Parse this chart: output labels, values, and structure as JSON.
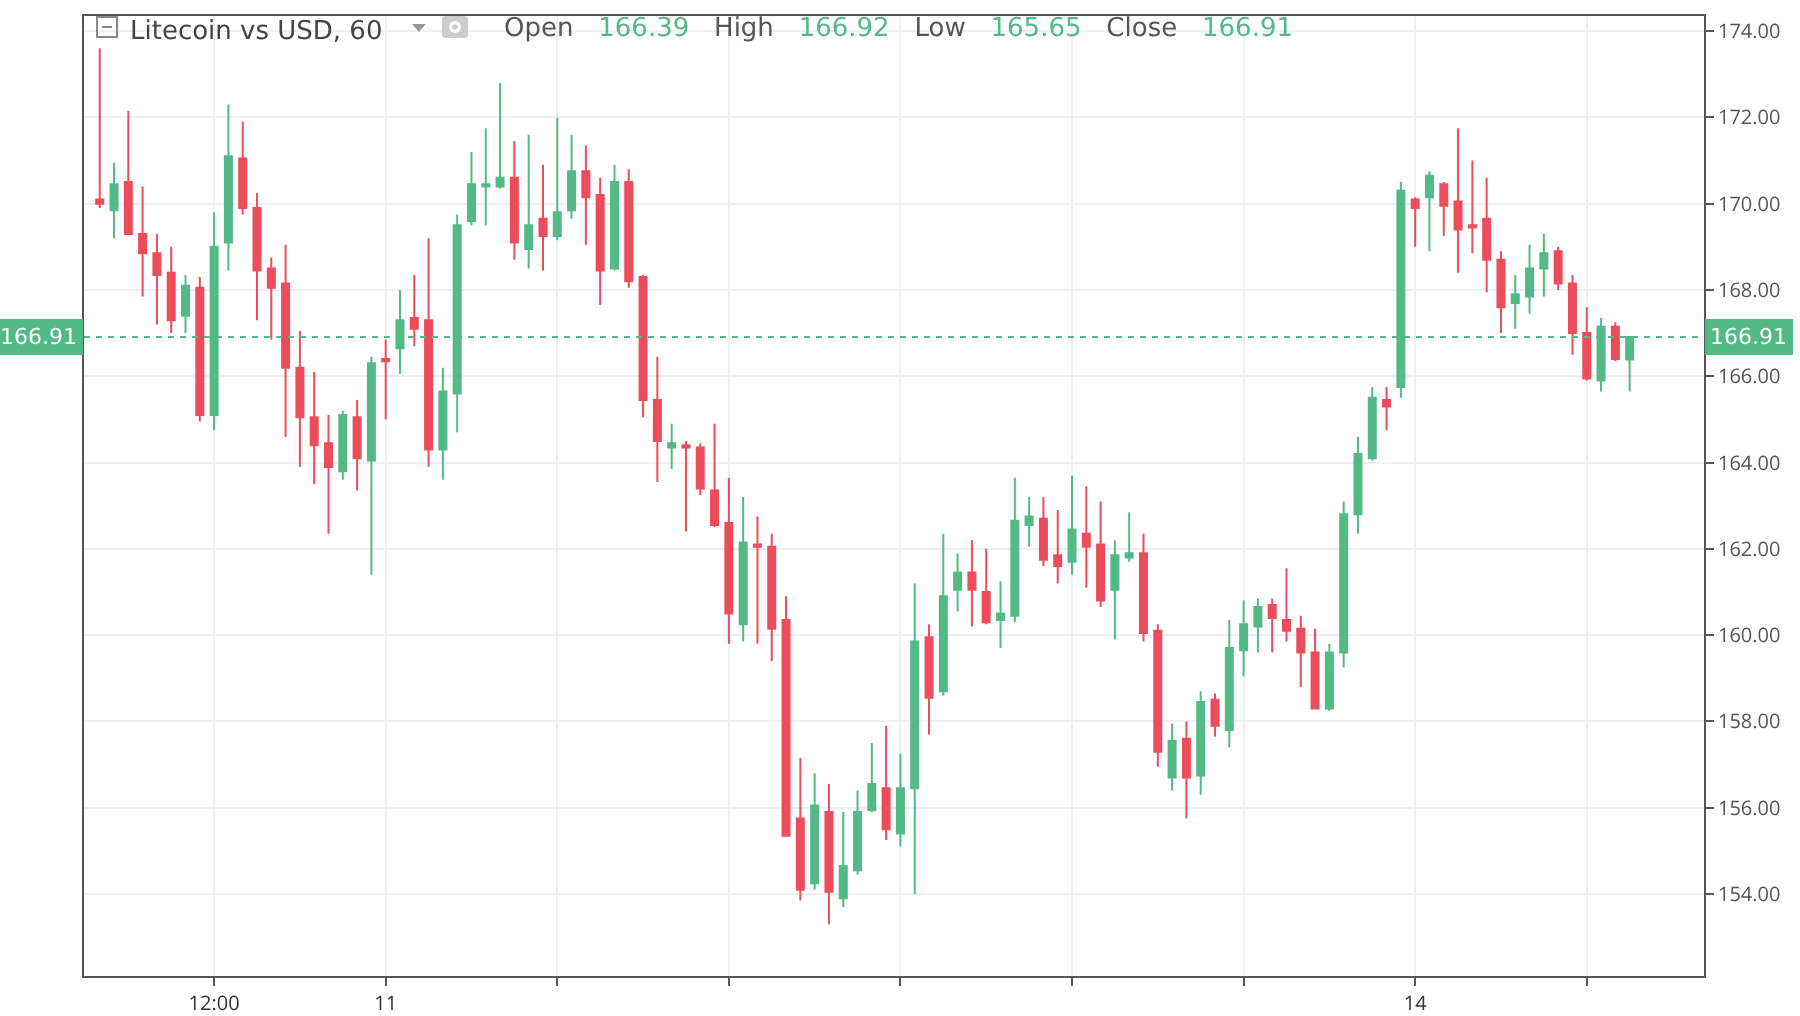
{
  "chart_data": {
    "type": "candlestick",
    "title": "Litecoin vs USD, 60",
    "subtitle": "Open 166.39 High 166.92 Low 165.65 Close 166.91",
    "categories": [
      null,
      null,
      null,
      null,
      null,
      null,
      null,
      null,
      "12:00",
      null,
      null,
      null,
      null,
      null,
      null,
      null,
      null,
      null,
      null,
      null,
      "11",
      null,
      null,
      null,
      null,
      null,
      null,
      null,
      null,
      null,
      null,
      null,
      null,
      null,
      null,
      null,
      null,
      null,
      null,
      null,
      null,
      null,
      null,
      null,
      null,
      null,
      null,
      null,
      null,
      null,
      null,
      null,
      null,
      null,
      null,
      null,
      null,
      null,
      null,
      null,
      null,
      null,
      null,
      null,
      null,
      null,
      null,
      null,
      null,
      null,
      null,
      null,
      null,
      null,
      null,
      null,
      null,
      null,
      null,
      null,
      null,
      null,
      null,
      null,
      null,
      null,
      null,
      null,
      null,
      null,
      null,
      null,
      "14",
      null,
      null,
      null,
      null,
      null,
      null,
      null,
      null,
      null,
      null,
      null,
      null,
      null,
      null,
      null
    ],
    "ohlc": [
      [
        170.1,
        173.6,
        169.9,
        170.0
      ],
      [
        169.85,
        170.95,
        169.2,
        170.45
      ],
      [
        170.5,
        172.15,
        169.3,
        169.3
      ],
      [
        169.3,
        170.4,
        167.85,
        168.85
      ],
      [
        168.85,
        169.3,
        167.2,
        168.35
      ],
      [
        168.4,
        169.0,
        167.0,
        167.3
      ],
      [
        167.4,
        168.35,
        167.0,
        168.1
      ],
      [
        168.05,
        168.3,
        164.95,
        165.1
      ],
      [
        165.1,
        169.8,
        164.75,
        169.0
      ],
      [
        169.1,
        172.3,
        168.45,
        171.1
      ],
      [
        171.05,
        171.9,
        169.75,
        169.9
      ],
      [
        169.9,
        170.25,
        167.3,
        168.45
      ],
      [
        168.5,
        168.75,
        166.85,
        168.05
      ],
      [
        168.15,
        169.05,
        164.6,
        166.2
      ],
      [
        166.2,
        167.05,
        163.9,
        165.05
      ],
      [
        165.05,
        166.1,
        163.5,
        164.4
      ],
      [
        164.45,
        165.1,
        162.35,
        163.9
      ],
      [
        163.8,
        165.2,
        163.6,
        165.1
      ],
      [
        165.05,
        165.45,
        163.35,
        164.1
      ],
      [
        164.05,
        166.45,
        161.4,
        166.3
      ],
      [
        166.4,
        166.85,
        165.0,
        166.35
      ],
      [
        166.65,
        168.0,
        166.05,
        167.3
      ],
      [
        167.35,
        168.35,
        166.7,
        167.1
      ],
      [
        167.3,
        169.2,
        163.9,
        164.3
      ],
      [
        164.3,
        166.2,
        163.6,
        165.65
      ],
      [
        165.6,
        169.75,
        164.7,
        169.5
      ],
      [
        169.6,
        171.2,
        169.5,
        170.45
      ],
      [
        170.4,
        171.75,
        169.5,
        170.45
      ],
      [
        170.4,
        172.8,
        170.35,
        170.6
      ],
      [
        170.6,
        171.45,
        168.7,
        169.1
      ],
      [
        168.95,
        171.6,
        168.5,
        169.5
      ],
      [
        169.65,
        170.9,
        168.45,
        169.25
      ],
      [
        169.25,
        172.0,
        169.15,
        169.8
      ],
      [
        169.85,
        171.6,
        169.65,
        170.75
      ],
      [
        170.75,
        171.35,
        169.05,
        170.15
      ],
      [
        170.2,
        170.6,
        167.65,
        168.45
      ],
      [
        168.5,
        170.9,
        168.45,
        170.5
      ],
      [
        170.5,
        170.8,
        168.05,
        168.2
      ],
      [
        168.3,
        168.35,
        165.05,
        165.45
      ],
      [
        165.45,
        166.45,
        163.55,
        164.5
      ],
      [
        164.35,
        164.9,
        163.85,
        164.45
      ],
      [
        164.4,
        164.5,
        162.4,
        164.35
      ],
      [
        164.35,
        164.45,
        163.25,
        163.4
      ],
      [
        163.35,
        164.9,
        162.5,
        162.55
      ],
      [
        162.6,
        163.65,
        159.8,
        160.5
      ],
      [
        160.25,
        163.2,
        159.85,
        162.15
      ],
      [
        162.1,
        162.75,
        159.8,
        162.05
      ],
      [
        162.05,
        162.35,
        159.4,
        160.15
      ],
      [
        160.35,
        160.9,
        155.35,
        155.35
      ],
      [
        155.75,
        157.15,
        153.85,
        154.1
      ],
      [
        154.25,
        156.8,
        154.1,
        156.05
      ],
      [
        155.9,
        156.55,
        153.3,
        154.05
      ],
      [
        153.9,
        155.9,
        153.7,
        154.65
      ],
      [
        154.55,
        156.4,
        154.45,
        155.9
      ],
      [
        155.95,
        157.5,
        155.9,
        156.55
      ],
      [
        156.45,
        157.9,
        155.25,
        155.5
      ],
      [
        155.4,
        157.25,
        155.1,
        156.45
      ],
      [
        156.45,
        161.2,
        154.0,
        159.85
      ],
      [
        159.95,
        160.25,
        157.7,
        158.55
      ],
      [
        158.7,
        162.35,
        158.6,
        160.9
      ],
      [
        161.05,
        161.9,
        160.55,
        161.45
      ],
      [
        161.45,
        162.2,
        160.2,
        161.05
      ],
      [
        161.0,
        162.0,
        160.25,
        160.3
      ],
      [
        160.35,
        161.25,
        159.7,
        160.5
      ],
      [
        160.45,
        163.65,
        160.3,
        162.65
      ],
      [
        162.55,
        163.2,
        162.05,
        162.75
      ],
      [
        162.7,
        163.2,
        161.6,
        161.75
      ],
      [
        161.85,
        162.9,
        161.2,
        161.6
      ],
      [
        161.7,
        163.7,
        161.4,
        162.45
      ],
      [
        162.35,
        163.45,
        161.1,
        162.05
      ],
      [
        162.1,
        163.1,
        160.65,
        160.8
      ],
      [
        161.05,
        162.2,
        159.9,
        161.85
      ],
      [
        161.8,
        162.85,
        161.7,
        161.9
      ],
      [
        161.9,
        162.35,
        159.85,
        160.05
      ],
      [
        160.1,
        160.25,
        156.95,
        157.3
      ],
      [
        156.7,
        157.95,
        156.4,
        157.55
      ],
      [
        157.6,
        158.0,
        155.75,
        156.7
      ],
      [
        156.75,
        158.7,
        156.3,
        158.45
      ],
      [
        158.5,
        158.65,
        157.65,
        157.9
      ],
      [
        157.8,
        160.35,
        157.4,
        159.7
      ],
      [
        159.65,
        160.8,
        159.05,
        160.25
      ],
      [
        160.2,
        160.85,
        159.6,
        160.65
      ],
      [
        160.7,
        160.85,
        159.6,
        160.4
      ],
      [
        160.35,
        161.55,
        159.85,
        160.1
      ],
      [
        160.15,
        160.45,
        158.8,
        159.6
      ],
      [
        159.6,
        160.15,
        158.3,
        158.3
      ],
      [
        158.3,
        159.8,
        158.25,
        159.6
      ],
      [
        159.6,
        163.1,
        159.25,
        162.8
      ],
      [
        162.8,
        164.6,
        162.35,
        164.2
      ],
      [
        164.1,
        165.75,
        164.05,
        165.5
      ],
      [
        165.45,
        165.75,
        164.75,
        165.3
      ],
      [
        165.75,
        170.5,
        165.5,
        170.3
      ],
      [
        170.1,
        170.15,
        169.0,
        169.9
      ],
      [
        170.15,
        170.75,
        168.9,
        170.65
      ],
      [
        170.45,
        170.5,
        169.25,
        169.95
      ],
      [
        170.05,
        171.75,
        168.4,
        169.4
      ],
      [
        169.5,
        171.0,
        168.85,
        169.45
      ],
      [
        169.65,
        170.6,
        167.95,
        168.7
      ],
      [
        168.7,
        168.9,
        167.0,
        167.6
      ],
      [
        167.7,
        168.35,
        167.1,
        167.9
      ],
      [
        167.85,
        169.05,
        167.45,
        168.5
      ],
      [
        168.5,
        169.3,
        167.85,
        168.85
      ],
      [
        168.9,
        169.0,
        168.0,
        168.15
      ],
      [
        168.15,
        168.35,
        166.5,
        167.0
      ],
      [
        167.0,
        167.6,
        165.9,
        165.95
      ],
      [
        165.9,
        167.35,
        165.65,
        167.15
      ],
      [
        167.15,
        167.25,
        166.35,
        166.4
      ],
      [
        166.39,
        166.92,
        165.65,
        166.91
      ]
    ],
    "colors": [
      "#eb4d5c",
      "#53b987",
      "#eb4d5c",
      "#eb4d5c",
      "#eb4d5c",
      "#eb4d5c",
      "#53b987",
      "#eb4d5c",
      "#53b987",
      "#53b987",
      "#eb4d5c",
      "#eb4d5c",
      "#eb4d5c",
      "#eb4d5c",
      "#eb4d5c",
      "#eb4d5c",
      "#eb4d5c",
      "#53b987",
      "#eb4d5c",
      "#53b987",
      "#eb4d5c",
      "#53b987",
      "#eb4d5c",
      "#eb4d5c",
      "#53b987",
      "#53b987",
      "#53b987",
      "#53b987",
      "#53b987",
      "#eb4d5c",
      "#53b987",
      "#eb4d5c",
      "#53b987",
      "#53b987",
      "#eb4d5c",
      "#eb4d5c",
      "#53b987",
      "#eb4d5c",
      "#eb4d5c",
      "#eb4d5c",
      "#53b987",
      "#eb4d5c",
      "#eb4d5c",
      "#eb4d5c",
      "#eb4d5c",
      "#53b987",
      "#eb4d5c",
      "#eb4d5c",
      "#eb4d5c",
      "#eb4d5c",
      "#53b987",
      "#eb4d5c",
      "#53b987",
      "#53b987",
      "#53b987",
      "#eb4d5c",
      "#53b987",
      "#53b987",
      "#eb4d5c",
      "#53b987",
      "#53b987",
      "#eb4d5c",
      "#eb4d5c",
      "#53b987",
      "#53b987",
      "#53b987",
      "#eb4d5c",
      "#eb4d5c",
      "#53b987",
      "#eb4d5c",
      "#eb4d5c",
      "#53b987",
      "#53b987",
      "#eb4d5c",
      "#eb4d5c",
      "#53b987",
      "#eb4d5c",
      "#53b987",
      "#eb4d5c",
      "#53b987",
      "#53b987",
      "#53b987",
      "#eb4d5c",
      "#eb4d5c",
      "#eb4d5c",
      "#eb4d5c",
      "#53b987",
      "#53b987",
      "#53b987",
      "#53b987",
      "#eb4d5c",
      "#53b987",
      "#eb4d5c",
      "#53b987",
      "#eb4d5c",
      "#eb4d5c",
      "#eb4d5c",
      "#eb4d5c",
      "#eb4d5c",
      "#53b987",
      "#53b987",
      "#53b987",
      "#eb4d5c",
      "#eb4d5c",
      "#eb4d5c",
      "#53b987",
      "#eb4d5c",
      "#53b987"
    ],
    "ylim": [
      152.1,
      174.35
    ],
    "yticks": [
      {
        "value": 154,
        "label": "154.00"
      },
      {
        "value": 156,
        "label": "156.00"
      },
      {
        "value": 158,
        "label": "158.00"
      },
      {
        "value": 160,
        "label": "160.00"
      },
      {
        "value": 162,
        "label": "162.00"
      },
      {
        "value": 164,
        "label": "164.00"
      },
      {
        "value": 166,
        "label": "166.00"
      },
      {
        "value": 168,
        "label": "168.00"
      },
      {
        "value": 170,
        "label": "170.00"
      },
      {
        "value": 172,
        "label": "172.00"
      },
      {
        "value": 174,
        "label": "174.00"
      }
    ],
    "grid": true,
    "ref_lines": [
      {
        "axis": "y",
        "value": 166.91,
        "label": "166.91",
        "color": "#53b987",
        "line_style": "dotted"
      }
    ]
  }
}
